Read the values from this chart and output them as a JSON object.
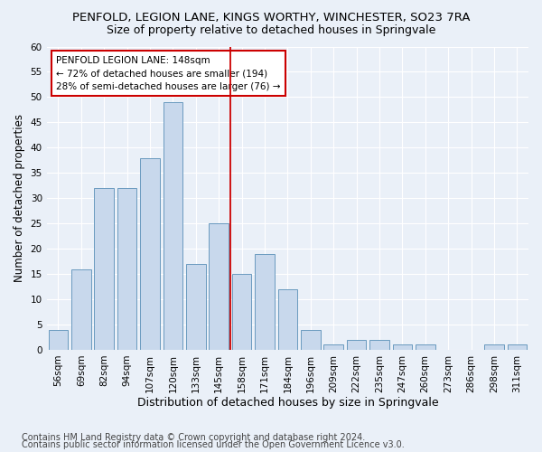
{
  "title": "PENFOLD, LEGION LANE, KINGS WORTHY, WINCHESTER, SO23 7RA",
  "subtitle": "Size of property relative to detached houses in Springvale",
  "xlabel": "Distribution of detached houses by size in Springvale",
  "ylabel": "Number of detached properties",
  "categories": [
    "56sqm",
    "69sqm",
    "82sqm",
    "94sqm",
    "107sqm",
    "120sqm",
    "133sqm",
    "145sqm",
    "158sqm",
    "171sqm",
    "184sqm",
    "196sqm",
    "209sqm",
    "222sqm",
    "235sqm",
    "247sqm",
    "260sqm",
    "273sqm",
    "286sqm",
    "298sqm",
    "311sqm"
  ],
  "values": [
    4,
    16,
    32,
    32,
    38,
    49,
    17,
    25,
    15,
    19,
    12,
    4,
    1,
    2,
    2,
    1,
    1,
    0,
    0,
    1,
    1
  ],
  "bar_color": "#c8d8ec",
  "bar_edge_color": "#6a9abf",
  "background_color": "#eaf0f8",
  "grid_color": "#ffffff",
  "vline_x": 7.5,
  "vline_color": "#cc0000",
  "annotation_line1": "PENFOLD LEGION LANE: 148sqm",
  "annotation_line2": "← 72% of detached houses are smaller (194)",
  "annotation_line3": "28% of semi-detached houses are larger (76) →",
  "annotation_box_color": "#ffffff",
  "annotation_box_edge": "#cc0000",
  "ylim": [
    0,
    60
  ],
  "yticks": [
    0,
    5,
    10,
    15,
    20,
    25,
    30,
    35,
    40,
    45,
    50,
    55,
    60
  ],
  "footer1": "Contains HM Land Registry data © Crown copyright and database right 2024.",
  "footer2": "Contains public sector information licensed under the Open Government Licence v3.0.",
  "title_fontsize": 9.5,
  "subtitle_fontsize": 9,
  "xlabel_fontsize": 9,
  "ylabel_fontsize": 8.5,
  "tick_fontsize": 7.5,
  "annotation_fontsize": 7.5,
  "footer_fontsize": 7
}
